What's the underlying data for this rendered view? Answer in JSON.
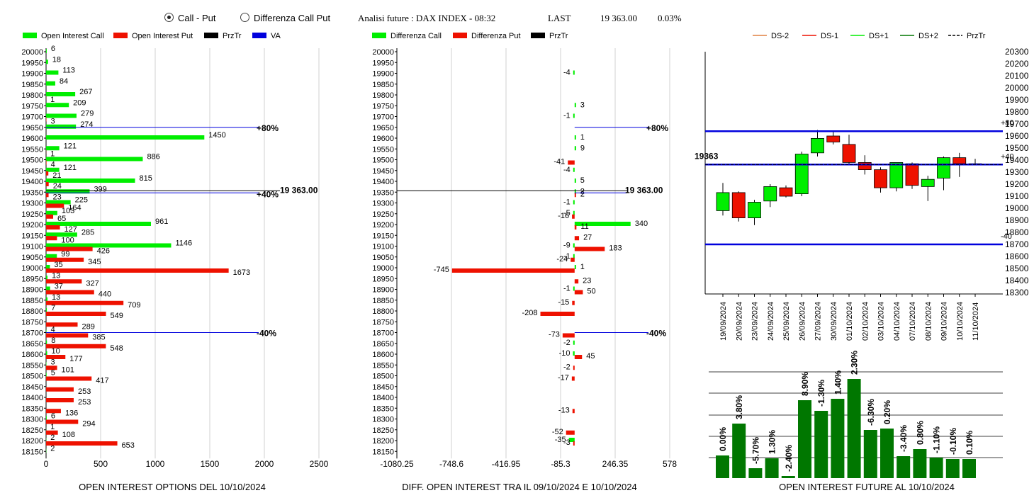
{
  "header": {
    "radio_call_put": "Call - Put",
    "radio_diff": "Differenza Call Put",
    "analisi": "Analisi future : DAX INDEX - 08:32",
    "last_label": "LAST",
    "last_value": "19 363.00",
    "last_change": "0.03%"
  },
  "colors": {
    "green": "#00ee00",
    "red": "#ee1100",
    "black": "#000000",
    "blue": "#0000dd",
    "dark_green": "#007700",
    "orange": "#e08040"
  },
  "chart_data": [
    {
      "type": "bar",
      "title": "OPEN INTEREST OPTIONS DEL 10/10/2024",
      "orientation": "horizontal",
      "legend": [
        "Open Interest Call",
        "Open Interest Put",
        "PrzTr",
        "VA"
      ],
      "categories": [
        "20000",
        "19950",
        "19900",
        "19850",
        "19800",
        "19750",
        "19700",
        "19650",
        "19600",
        "19550",
        "19500",
        "19450",
        "19400",
        "19350",
        "19300",
        "19250",
        "19200",
        "19150",
        "19100",
        "19050",
        "19000",
        "18950",
        "18900",
        "18850",
        "18800",
        "18750",
        "18700",
        "18650",
        "18600",
        "18550",
        "18500",
        "18450",
        "18400",
        "18350",
        "18300",
        "18250",
        "18200",
        "18150"
      ],
      "series": [
        {
          "name": "Open Interest Call",
          "values": [
            6,
            18,
            113,
            84,
            267,
            209,
            279,
            274,
            1450,
            121,
            886,
            121,
            815,
            399,
            225,
            103,
            961,
            285,
            1146,
            99,
            35,
            13,
            37,
            13,
            7,
            0,
            4,
            8,
            10,
            3,
            5,
            0,
            0,
            0,
            6,
            1,
            2,
            2
          ]
        },
        {
          "name": "Open Interest Put",
          "values": [
            0,
            0,
            0,
            0,
            1,
            0,
            3,
            0,
            0,
            1,
            4,
            21,
            24,
            23,
            164,
            65,
            127,
            100,
            426,
            345,
            1673,
            327,
            440,
            709,
            549,
            289,
            385,
            548,
            177,
            101,
            417,
            253,
            253,
            136,
            294,
            108,
            653,
            0
          ]
        }
      ],
      "x_ticks": [
        "0",
        "500",
        "1000",
        "1500",
        "2000",
        "2500"
      ],
      "xlim": [
        0,
        2500
      ],
      "annotations": [
        {
          "text": "+80%",
          "strike": "19650"
        },
        {
          "text": "+40%",
          "strike": "19350"
        },
        {
          "text": "19 363.00",
          "strike": "19350"
        },
        {
          "text": "-40%",
          "strike": "18700"
        }
      ]
    },
    {
      "type": "bar",
      "title": "DIFF. OPEN INTEREST TRA IL 09/10/2024 E 10/10/2024",
      "orientation": "horizontal",
      "legend": [
        "Differenza Call",
        "Differenza Put",
        "PrzTr"
      ],
      "categories": [
        "20000",
        "19950",
        "19900",
        "19850",
        "19800",
        "19750",
        "19700",
        "19650",
        "19600",
        "19550",
        "19500",
        "19450",
        "19400",
        "19350",
        "19300",
        "19250",
        "19200",
        "19150",
        "19100",
        "19050",
        "19000",
        "18950",
        "18900",
        "18850",
        "18800",
        "18750",
        "18700",
        "18650",
        "18600",
        "18550",
        "18500",
        "18450",
        "18400",
        "18350",
        "18300",
        "18250",
        "18200",
        "18150"
      ],
      "series": [
        {
          "name": "Differenza Call",
          "values": [
            null,
            null,
            -4,
            null,
            null,
            3,
            -1,
            null,
            1,
            9,
            null,
            -4,
            5,
            2,
            -1,
            -5,
            340,
            null,
            -9,
            -1,
            1,
            null,
            -1,
            null,
            null,
            null,
            null,
            -2,
            -10,
            null,
            null,
            null,
            null,
            null,
            null,
            null,
            -35,
            null
          ]
        },
        {
          "name": "Differenza Put",
          "values": [
            null,
            null,
            null,
            null,
            null,
            null,
            null,
            null,
            null,
            null,
            -41,
            null,
            null,
            2,
            null,
            -16,
            11,
            27,
            183,
            -24,
            -745,
            23,
            50,
            -15,
            -208,
            null,
            -73,
            null,
            45,
            -2,
            -17,
            null,
            null,
            -13,
            null,
            -52,
            -3,
            null
          ]
        }
      ],
      "x_ticks": [
        "-1080.25",
        "-748.6",
        "-416.95",
        "-85.3",
        "246.35",
        "578"
      ],
      "xlim": [
        -1080.25,
        578
      ],
      "annotations": [
        {
          "text": "+80%",
          "strike": "19650"
        },
        {
          "text": "19 363.00",
          "strike": "19350"
        },
        {
          "text": "-40%",
          "strike": "18700"
        }
      ]
    },
    {
      "type": "candlestick",
      "legend": [
        "DS-2",
        "DS-1",
        "DS+1",
        "DS+2",
        "PrzTr"
      ],
      "x": [
        "19/09/2024",
        "20/09/2024",
        "23/09/2024",
        "24/09/2024",
        "25/09/2024",
        "26/09/2024",
        "27/09/2024",
        "30/09/2024",
        "01/10/2024",
        "02/10/2024",
        "03/10/2024",
        "04/10/2024",
        "07/10/2024",
        "08/10/2024",
        "09/10/2024",
        "10/10/2024",
        "11/10/2024"
      ],
      "ohlc": [
        [
          18980,
          19210,
          18940,
          19130
        ],
        [
          19130,
          19140,
          18890,
          18920
        ],
        [
          18920,
          19070,
          18860,
          19050
        ],
        [
          19060,
          19200,
          19010,
          19180
        ],
        [
          19170,
          19190,
          19090,
          19100
        ],
        [
          19120,
          19470,
          19100,
          19450
        ],
        [
          19460,
          19650,
          19430,
          19580
        ],
        [
          19600,
          19640,
          19530,
          19550
        ],
        [
          19530,
          19610,
          19360,
          19380
        ],
        [
          19380,
          19440,
          19280,
          19320
        ],
        [
          19320,
          19340,
          19130,
          19170
        ],
        [
          19170,
          19380,
          19140,
          19380
        ],
        [
          19370,
          19380,
          19160,
          19190
        ],
        [
          19180,
          19270,
          19060,
          19240
        ],
        [
          19250,
          19430,
          19150,
          19420
        ],
        [
          19420,
          19460,
          19260,
          19370
        ],
        [
          19370,
          19410,
          19360,
          19370
        ]
      ],
      "y_ticks": [
        "20300",
        "20200",
        "20100",
        "20000",
        "19900",
        "19800",
        "19700",
        "19600",
        "19500",
        "19400",
        "19300",
        "19200",
        "19100",
        "19000",
        "18900",
        "18800",
        "18700",
        "18600",
        "18500",
        "18400",
        "18300"
      ],
      "ylim": [
        18300,
        20300
      ],
      "last_label": "19363",
      "levels": [
        {
          "name": "+80",
          "value": 19640
        },
        {
          "name": "+40",
          "value": 19363
        },
        {
          "name": "-40",
          "value": 18700
        }
      ],
      "przTr": 19363
    },
    {
      "type": "bar",
      "title": "OPEN INTEREST FUTURE AL 10/10/2024",
      "categories": [
        "19/09/2024",
        "20/09/2024",
        "23/09/2024",
        "24/09/2024",
        "25/09/2024",
        "26/09/2024",
        "27/09/2024",
        "30/09/2024",
        "01/10/2024",
        "02/10/2024",
        "03/10/2024",
        "04/10/2024",
        "07/10/2024",
        "08/10/2024",
        "09/10/2024",
        "10/10/2024"
      ],
      "labels": [
        "0.00%",
        "3.80%",
        "-5.70%",
        "1.30%",
        "-2.40%",
        "8.90%",
        "-1.30%",
        "1.40%",
        "2.30%",
        "-6.30%",
        "0.20%",
        "-3.40%",
        "0.80%",
        "-1.10%",
        "-0.10%",
        "0.10%"
      ],
      "values": [
        32,
        77,
        14,
        28,
        3,
        110,
        95,
        112,
        140,
        68,
        70,
        31,
        41,
        29,
        27,
        27
      ]
    }
  ]
}
